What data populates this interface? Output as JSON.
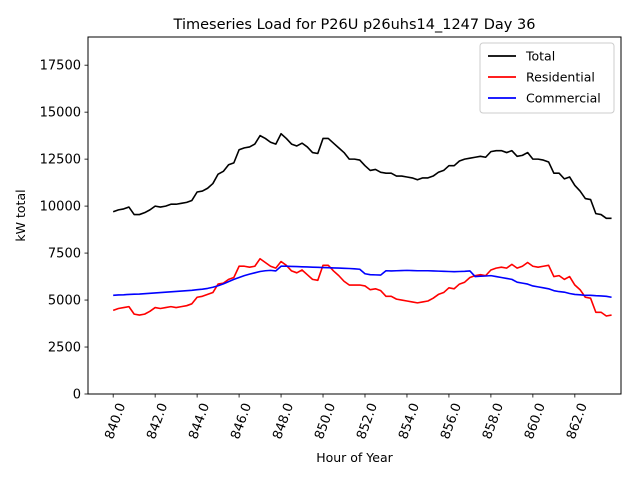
{
  "chart_data": {
    "type": "line",
    "title": "Timeseries Load for P26U p26uhs14_1247  Day 36",
    "xlabel": "Hour of Year",
    "ylabel": "kW total",
    "xlim": [
      838.8,
      864.2
    ],
    "ylim": [
      0,
      19000
    ],
    "xticks": [
      840.0,
      842.0,
      844.0,
      846.0,
      848.0,
      850.0,
      852.0,
      854.0,
      856.0,
      858.0,
      860.0,
      862.0
    ],
    "xtick_labels": [
      "840.0",
      "842.0",
      "844.0",
      "846.0",
      "848.0",
      "850.0",
      "852.0",
      "854.0",
      "856.0",
      "858.0",
      "860.0",
      "862.0"
    ],
    "yticks": [
      0,
      2500,
      5000,
      7500,
      10000,
      12500,
      15000,
      17500
    ],
    "ytick_labels": [
      "0",
      "2500",
      "5000",
      "7500",
      "10000",
      "12500",
      "15000",
      "17500"
    ],
    "legend_position": "top-right",
    "x_start": 840.0,
    "x_step": 0.25,
    "series": [
      {
        "name": "Total",
        "color": "#000000",
        "values": [
          9700,
          9800,
          9850,
          9950,
          9550,
          9550,
          9650,
          9800,
          10000,
          9950,
          10000,
          10100,
          10100,
          10150,
          10200,
          10300,
          10750,
          10800,
          10950,
          11200,
          11700,
          11850,
          12200,
          12300,
          13000,
          13100,
          13150,
          13300,
          13750,
          13600,
          13400,
          13300,
          13850,
          13600,
          13300,
          13200,
          13350,
          13150,
          12850,
          12800,
          13600,
          13600,
          13350,
          13100,
          12850,
          12500,
          12500,
          12450,
          12150,
          11900,
          11950,
          11800,
          11750,
          11750,
          11600,
          11600,
          11550,
          11500,
          11400,
          11500,
          11500,
          11600,
          11800,
          11900,
          12150,
          12150,
          12400,
          12500,
          12550,
          12600,
          12650,
          12600,
          12900,
          12950,
          12950,
          12850,
          12950,
          12650,
          12700,
          12850,
          12500,
          12500,
          12450,
          12350,
          11750,
          11750,
          11450,
          11550,
          11100,
          10800,
          10400,
          10350,
          9600,
          9550,
          9350,
          9350
        ]
      },
      {
        "name": "Residential",
        "color": "#ff0000",
        "values": [
          4450,
          4550,
          4600,
          4650,
          4250,
          4200,
          4250,
          4400,
          4600,
          4550,
          4600,
          4650,
          4600,
          4650,
          4700,
          4800,
          5150,
          5200,
          5300,
          5400,
          5850,
          5900,
          6100,
          6200,
          6800,
          6800,
          6750,
          6800,
          7200,
          7000,
          6800,
          6700,
          7050,
          6850,
          6550,
          6450,
          6600,
          6350,
          6100,
          6050,
          6850,
          6850,
          6550,
          6300,
          6000,
          5800,
          5800,
          5800,
          5750,
          5550,
          5600,
          5500,
          5200,
          5200,
          5050,
          5000,
          4950,
          4900,
          4850,
          4900,
          4950,
          5100,
          5300,
          5400,
          5650,
          5600,
          5850,
          5950,
          6200,
          6300,
          6350,
          6300,
          6600,
          6700,
          6750,
          6700,
          6900,
          6700,
          6800,
          7000,
          6800,
          6750,
          6800,
          6850,
          6250,
          6300,
          6100,
          6250,
          5800,
          5550,
          5150,
          5100,
          4350,
          4350,
          4150,
          4200
        ]
      },
      {
        "name": "Commercial",
        "color": "#0000ff",
        "values": [
          5250,
          5270,
          5280,
          5300,
          5310,
          5320,
          5340,
          5360,
          5380,
          5400,
          5420,
          5440,
          5460,
          5480,
          5500,
          5520,
          5550,
          5580,
          5620,
          5680,
          5760,
          5860,
          5980,
          6100,
          6200,
          6300,
          6380,
          6450,
          6520,
          6560,
          6580,
          6550,
          6800,
          6800,
          6790,
          6780,
          6770,
          6760,
          6750,
          6740,
          6730,
          6720,
          6710,
          6700,
          6690,
          6680,
          6660,
          6640,
          6400,
          6350,
          6340,
          6330,
          6560,
          6550,
          6560,
          6570,
          6580,
          6570,
          6560,
          6560,
          6560,
          6550,
          6540,
          6530,
          6520,
          6510,
          6520,
          6530,
          6550,
          6250,
          6270,
          6280,
          6300,
          6250,
          6200,
          6150,
          6100,
          5950,
          5900,
          5850,
          5750,
          5700,
          5650,
          5600,
          5500,
          5450,
          5420,
          5350,
          5300,
          5280,
          5250,
          5250,
          5230,
          5220,
          5200,
          5150
        ]
      }
    ]
  }
}
